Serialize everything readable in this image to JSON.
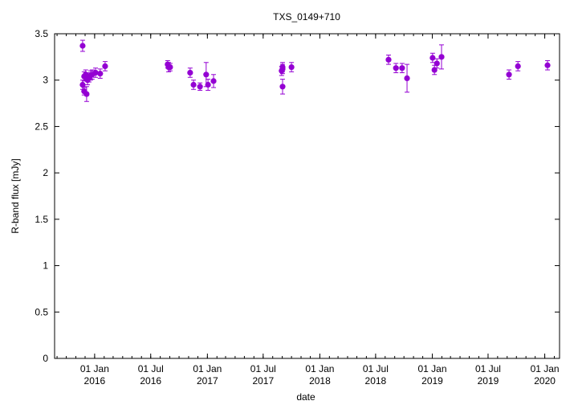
{
  "chart_data": {
    "type": "scatter",
    "title": "TXS_0149+710",
    "xlabel": "date",
    "ylabel": "R-band flux [mJy]",
    "xlim": [
      "2015-08-24",
      "2020-02-18"
    ],
    "ylim": [
      0,
      3.5
    ],
    "yticks": [
      0,
      0.5,
      1,
      1.5,
      2,
      2.5,
      3,
      3.5
    ],
    "ytick_labels": [
      "0",
      "0.5",
      "1",
      "1.5",
      "2",
      "2.5",
      "3",
      "3.5"
    ],
    "xticks": [
      {
        "date": "2016-01-01",
        "l1": "01 Jan",
        "l2": "2016"
      },
      {
        "date": "2016-07-01",
        "l1": "01 Jul",
        "l2": "2016"
      },
      {
        "date": "2017-01-01",
        "l1": "01 Jan",
        "l2": "2017"
      },
      {
        "date": "2017-07-01",
        "l1": "01 Jul",
        "l2": "2017"
      },
      {
        "date": "2018-01-01",
        "l1": "01 Jan",
        "l2": "2018"
      },
      {
        "date": "2018-07-01",
        "l1": "01 Jul",
        "l2": "2018"
      },
      {
        "date": "2019-01-01",
        "l1": "01 Jan",
        "l2": "2019"
      },
      {
        "date": "2019-07-01",
        "l1": "01 Jul",
        "l2": "2019"
      },
      {
        "date": "2020-01-01",
        "l1": "01 Jan",
        "l2": "2020"
      }
    ],
    "color": "#9400d3",
    "points": [
      {
        "x": "2015-11-23",
        "y": 3.37,
        "err": 0.06
      },
      {
        "x": "2015-11-23",
        "y": 2.95,
        "err": 0.05
      },
      {
        "x": "2015-11-28",
        "y": 2.88,
        "err": 0.04
      },
      {
        "x": "2015-11-28",
        "y": 3.04,
        "err": 0.05
      },
      {
        "x": "2015-12-03",
        "y": 3.06,
        "err": 0.05
      },
      {
        "x": "2015-12-06",
        "y": 2.85,
        "err": 0.08
      },
      {
        "x": "2015-12-09",
        "y": 3.0,
        "err": 0.05
      },
      {
        "x": "2015-12-14",
        "y": 3.03,
        "err": 0.05
      },
      {
        "x": "2015-12-19",
        "y": 3.05,
        "err": 0.05
      },
      {
        "x": "2015-12-24",
        "y": 3.06,
        "err": 0.05
      },
      {
        "x": "2016-01-04",
        "y": 3.08,
        "err": 0.05
      },
      {
        "x": "2016-01-19",
        "y": 3.07,
        "err": 0.05
      },
      {
        "x": "2016-02-04",
        "y": 3.15,
        "err": 0.05
      },
      {
        "x": "2016-08-25",
        "y": 3.17,
        "err": 0.04
      },
      {
        "x": "2016-08-28",
        "y": 3.14,
        "err": 0.05
      },
      {
        "x": "2016-09-02",
        "y": 3.14,
        "err": 0.04
      },
      {
        "x": "2016-11-06",
        "y": 3.08,
        "err": 0.05
      },
      {
        "x": "2016-11-17",
        "y": 2.95,
        "err": 0.05
      },
      {
        "x": "2016-12-08",
        "y": 2.93,
        "err": 0.04
      },
      {
        "x": "2016-12-28",
        "y": 3.06,
        "err": 0.13
      },
      {
        "x": "2017-01-03",
        "y": 2.95,
        "err": 0.06
      },
      {
        "x": "2017-01-21",
        "y": 2.99,
        "err": 0.07
      },
      {
        "x": "2017-08-30",
        "y": 3.1,
        "err": 0.05
      },
      {
        "x": "2017-09-02",
        "y": 3.12,
        "err": 0.05
      },
      {
        "x": "2017-09-02",
        "y": 3.14,
        "err": 0.05
      },
      {
        "x": "2017-09-02",
        "y": 2.93,
        "err": 0.08
      },
      {
        "x": "2017-10-01",
        "y": 3.14,
        "err": 0.05
      },
      {
        "x": "2018-08-12",
        "y": 3.22,
        "err": 0.05
      },
      {
        "x": "2018-09-05",
        "y": 3.13,
        "err": 0.05
      },
      {
        "x": "2018-09-25",
        "y": 3.13,
        "err": 0.05
      },
      {
        "x": "2018-10-11",
        "y": 3.02,
        "err": 0.15
      },
      {
        "x": "2019-01-02",
        "y": 3.24,
        "err": 0.05
      },
      {
        "x": "2019-01-08",
        "y": 3.11,
        "err": 0.05
      },
      {
        "x": "2019-01-16",
        "y": 3.18,
        "err": 0.05
      },
      {
        "x": "2019-01-31",
        "y": 3.25,
        "err": 0.13
      },
      {
        "x": "2019-09-07",
        "y": 3.06,
        "err": 0.05
      },
      {
        "x": "2019-10-06",
        "y": 3.15,
        "err": 0.05
      },
      {
        "x": "2020-01-10",
        "y": 3.16,
        "err": 0.05
      }
    ]
  }
}
